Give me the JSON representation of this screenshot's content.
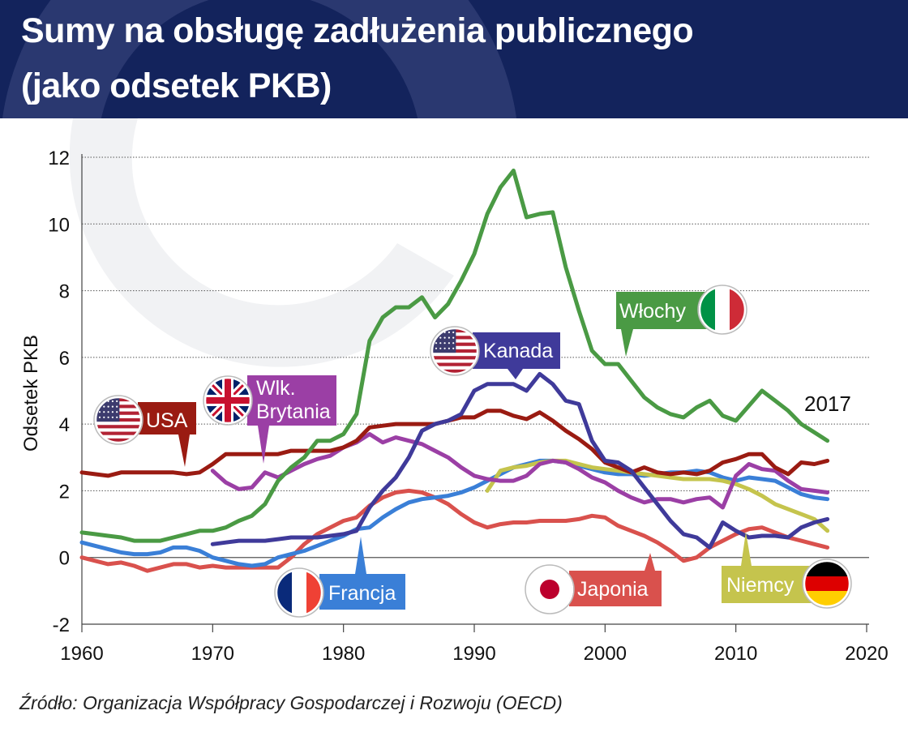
{
  "title_line1": "Sumy na obsługę zadłużenia publicznego",
  "title_line2": "(jako odsetek PKB)",
  "source": "Źródło: Organizacja Współpracy Gospodarczej i Rozwoju (OECD)",
  "chart_data": {
    "type": "line",
    "ylabel": "Odsetek PKB",
    "xlim": [
      1960,
      2020
    ],
    "ylim": [
      -2,
      12
    ],
    "xticks": [
      "1960",
      "1970",
      "1980",
      "1990",
      "2000",
      "2010",
      "2020"
    ],
    "yticks": [
      "-2",
      "0",
      "2",
      "4",
      "6",
      "8",
      "10",
      "12"
    ],
    "grid": true,
    "annotation": "2017",
    "series": [
      {
        "name": "USA",
        "color": "#9a1b12",
        "x": [
          1960,
          1961,
          1962,
          1963,
          1964,
          1965,
          1966,
          1967,
          1968,
          1969,
          1970,
          1971,
          1972,
          1973,
          1974,
          1975,
          1976,
          1977,
          1978,
          1979,
          1980,
          1981,
          1982,
          1983,
          1984,
          1985,
          1986,
          1987,
          1988,
          1989,
          1990,
          1991,
          1992,
          1993,
          1994,
          1995,
          1996,
          1997,
          1998,
          1999,
          2000,
          2001,
          2002,
          2003,
          2004,
          2005,
          2006,
          2007,
          2008,
          2009,
          2010,
          2011,
          2012,
          2013,
          2014,
          2015,
          2016,
          2017
        ],
        "values": [
          2.55,
          2.5,
          2.45,
          2.55,
          2.55,
          2.55,
          2.55,
          2.55,
          2.5,
          2.55,
          2.8,
          3.1,
          3.1,
          3.1,
          3.1,
          3.1,
          3.2,
          3.2,
          3.2,
          3.2,
          3.3,
          3.5,
          3.9,
          3.95,
          4.0,
          4.0,
          4.0,
          4.0,
          4.1,
          4.2,
          4.2,
          4.4,
          4.4,
          4.25,
          4.15,
          4.35,
          4.1,
          3.8,
          3.55,
          3.25,
          2.85,
          2.7,
          2.55,
          2.7,
          2.55,
          2.5,
          2.55,
          2.5,
          2.6,
          2.85,
          2.95,
          3.1,
          3.1,
          2.7,
          2.5,
          2.85,
          2.8,
          2.9
        ]
      },
      {
        "name": "Włochy",
        "color": "#4a9a44",
        "x": [
          1960,
          1961,
          1962,
          1963,
          1964,
          1965,
          1966,
          1967,
          1968,
          1969,
          1970,
          1971,
          1972,
          1973,
          1974,
          1975,
          1976,
          1977,
          1978,
          1979,
          1980,
          1981,
          1982,
          1983,
          1984,
          1985,
          1986,
          1987,
          1988,
          1989,
          1990,
          1991,
          1992,
          1993,
          1994,
          1995,
          1996,
          1997,
          1998,
          1999,
          2000,
          2001,
          2002,
          2003,
          2004,
          2005,
          2006,
          2007,
          2008,
          2009,
          2010,
          2011,
          2012,
          2013,
          2014,
          2015,
          2016,
          2017
        ],
        "values": [
          0.75,
          0.7,
          0.65,
          0.6,
          0.5,
          0.5,
          0.5,
          0.6,
          0.7,
          0.8,
          0.8,
          0.9,
          1.1,
          1.25,
          1.6,
          2.3,
          2.7,
          3.0,
          3.5,
          3.5,
          3.7,
          4.3,
          6.5,
          7.2,
          7.5,
          7.5,
          7.8,
          7.2,
          7.6,
          8.3,
          9.1,
          10.3,
          11.1,
          11.6,
          10.2,
          10.3,
          10.35,
          8.7,
          7.4,
          6.2,
          5.8,
          5.8,
          5.3,
          4.8,
          4.5,
          4.3,
          4.2,
          4.5,
          4.7,
          4.25,
          4.1,
          4.55,
          5.0,
          4.7,
          4.4,
          4.0,
          3.75,
          3.5
        ]
      },
      {
        "name": "Kanada",
        "color": "#3f3a9a",
        "x": [
          1970,
          1971,
          1972,
          1973,
          1974,
          1975,
          1976,
          1977,
          1978,
          1979,
          1980,
          1981,
          1982,
          1983,
          1984,
          1985,
          1986,
          1987,
          1988,
          1989,
          1990,
          1991,
          1992,
          1993,
          1994,
          1995,
          1996,
          1997,
          1998,
          1999,
          2000,
          2001,
          2002,
          2003,
          2004,
          2005,
          2006,
          2007,
          2008,
          2009,
          2010,
          2011,
          2012,
          2013,
          2014,
          2015,
          2016,
          2017
        ],
        "values": [
          0.4,
          0.45,
          0.5,
          0.5,
          0.5,
          0.55,
          0.6,
          0.6,
          0.6,
          0.65,
          0.7,
          0.8,
          1.5,
          2.0,
          2.4,
          3.0,
          3.8,
          4.0,
          4.1,
          4.3,
          5.0,
          5.2,
          5.2,
          5.2,
          5.0,
          5.5,
          5.2,
          4.7,
          4.6,
          3.5,
          2.9,
          2.85,
          2.6,
          2.1,
          1.6,
          1.1,
          0.7,
          0.6,
          0.3,
          1.05,
          0.8,
          0.6,
          0.65,
          0.65,
          0.6,
          0.9,
          1.05,
          1.15
        ]
      },
      {
        "name": "Wlk. Brytania",
        "color": "#9b3fa5",
        "x": [
          1970,
          1971,
          1972,
          1973,
          1974,
          1975,
          1976,
          1977,
          1978,
          1979,
          1980,
          1981,
          1982,
          1983,
          1984,
          1985,
          1986,
          1987,
          1988,
          1989,
          1990,
          1991,
          1992,
          1993,
          1994,
          1995,
          1996,
          1997,
          1998,
          1999,
          2000,
          2001,
          2002,
          2003,
          2004,
          2005,
          2006,
          2007,
          2008,
          2009,
          2010,
          2011,
          2012,
          2013,
          2014,
          2015,
          2016,
          2017
        ],
        "values": [
          2.6,
          2.25,
          2.05,
          2.1,
          2.55,
          2.4,
          2.6,
          2.8,
          2.95,
          3.05,
          3.3,
          3.45,
          3.7,
          3.45,
          3.6,
          3.5,
          3.4,
          3.2,
          3.0,
          2.7,
          2.45,
          2.35,
          2.3,
          2.3,
          2.45,
          2.8,
          2.9,
          2.85,
          2.65,
          2.4,
          2.25,
          2.0,
          1.8,
          1.65,
          1.75,
          1.75,
          1.65,
          1.75,
          1.8,
          1.5,
          2.45,
          2.8,
          2.65,
          2.6,
          2.3,
          2.05,
          2.0,
          1.95
        ]
      },
      {
        "name": "Francja",
        "color": "#3a7fd7",
        "x": [
          1960,
          1961,
          1962,
          1963,
          1964,
          1965,
          1966,
          1967,
          1968,
          1969,
          1970,
          1971,
          1972,
          1973,
          1974,
          1975,
          1976,
          1977,
          1978,
          1979,
          1980,
          1981,
          1982,
          1983,
          1984,
          1985,
          1986,
          1987,
          1988,
          1989,
          1990,
          1991,
          1992,
          1993,
          1994,
          1995,
          1996,
          1997,
          1998,
          1999,
          2000,
          2001,
          2002,
          2003,
          2004,
          2005,
          2006,
          2007,
          2008,
          2009,
          2010,
          2011,
          2012,
          2013,
          2014,
          2015,
          2016,
          2017
        ],
        "values": [
          0.45,
          0.35,
          0.25,
          0.15,
          0.1,
          0.1,
          0.15,
          0.3,
          0.3,
          0.2,
          0.0,
          -0.1,
          -0.2,
          -0.25,
          -0.2,
          0.0,
          0.1,
          0.2,
          0.35,
          0.5,
          0.65,
          0.85,
          0.9,
          1.2,
          1.45,
          1.65,
          1.75,
          1.8,
          1.85,
          1.95,
          2.1,
          2.3,
          2.5,
          2.7,
          2.8,
          2.9,
          2.9,
          2.85,
          2.75,
          2.65,
          2.55,
          2.5,
          2.5,
          2.45,
          2.5,
          2.55,
          2.55,
          2.6,
          2.55,
          2.4,
          2.3,
          2.4,
          2.35,
          2.3,
          2.1,
          1.9,
          1.8,
          1.75
        ]
      },
      {
        "name": "Japonia",
        "color": "#d9514d",
        "x": [
          1960,
          1961,
          1962,
          1963,
          1964,
          1965,
          1966,
          1967,
          1968,
          1969,
          1970,
          1971,
          1972,
          1973,
          1974,
          1975,
          1976,
          1977,
          1978,
          1979,
          1980,
          1981,
          1982,
          1983,
          1984,
          1985,
          1986,
          1987,
          1988,
          1989,
          1990,
          1991,
          1992,
          1993,
          1994,
          1995,
          1996,
          1997,
          1998,
          1999,
          2000,
          2001,
          2002,
          2003,
          2004,
          2005,
          2006,
          2007,
          2008,
          2009,
          2010,
          2011,
          2012,
          2013,
          2014,
          2015,
          2016,
          2017
        ],
        "values": [
          0.0,
          -0.1,
          -0.2,
          -0.15,
          -0.25,
          -0.4,
          -0.3,
          -0.2,
          -0.2,
          -0.3,
          -0.25,
          -0.3,
          -0.3,
          -0.3,
          -0.3,
          -0.3,
          0.0,
          0.4,
          0.7,
          0.9,
          1.1,
          1.2,
          1.55,
          1.8,
          1.95,
          2.0,
          1.95,
          1.8,
          1.6,
          1.3,
          1.05,
          0.9,
          1.0,
          1.05,
          1.05,
          1.1,
          1.1,
          1.1,
          1.15,
          1.25,
          1.2,
          0.95,
          0.8,
          0.65,
          0.45,
          0.2,
          -0.1,
          0.0,
          0.3,
          0.5,
          0.7,
          0.85,
          0.9,
          0.75,
          0.6,
          0.5,
          0.4,
          0.3
        ]
      },
      {
        "name": "Niemcy",
        "color": "#c5c44d",
        "x": [
          1991,
          1992,
          1993,
          1994,
          1995,
          1996,
          1997,
          1998,
          1999,
          2000,
          2001,
          2002,
          2003,
          2004,
          2005,
          2006,
          2007,
          2008,
          2009,
          2010,
          2011,
          2012,
          2013,
          2014,
          2015,
          2016,
          2017
        ],
        "values": [
          2.0,
          2.6,
          2.7,
          2.75,
          2.85,
          2.9,
          2.9,
          2.8,
          2.7,
          2.65,
          2.6,
          2.55,
          2.5,
          2.45,
          2.4,
          2.35,
          2.35,
          2.35,
          2.3,
          2.2,
          2.05,
          1.85,
          1.6,
          1.45,
          1.3,
          1.15,
          0.8
        ]
      }
    ],
    "labels": [
      {
        "series": "USA",
        "text": "USA",
        "flag": "flag-usa-icon"
      },
      {
        "series": "Wlk. Brytania",
        "text_line1": "Wlk.",
        "text_line2": "Brytania",
        "flag": "flag-uk-icon"
      },
      {
        "series": "Kanada",
        "text": "Kanada",
        "flag": "flag-usa-icon"
      },
      {
        "series": "Włochy",
        "text": "Włochy",
        "flag": "flag-italy-icon"
      },
      {
        "series": "Francja",
        "text": "Francja",
        "flag": "flag-france-icon"
      },
      {
        "series": "Japonia",
        "text": "Japonia",
        "flag": "flag-japan-icon"
      },
      {
        "series": "Niemcy",
        "text": "Niemcy",
        "flag": "flag-germany-icon"
      }
    ]
  }
}
